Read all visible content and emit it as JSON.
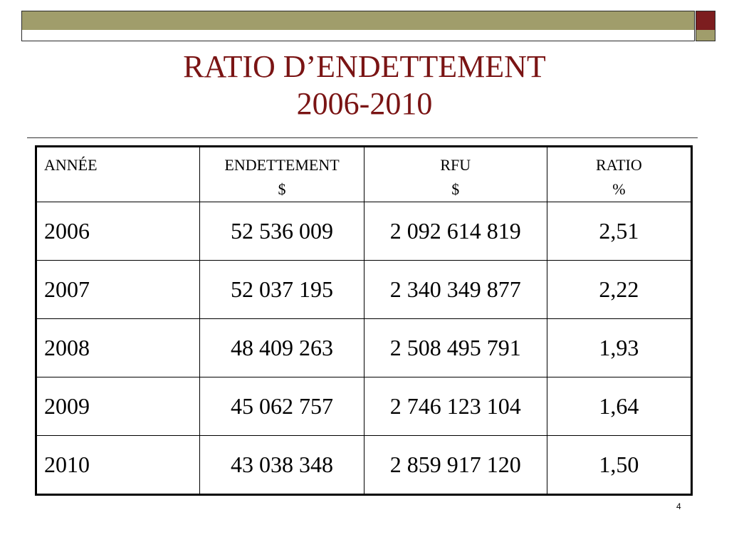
{
  "slide": {
    "title_line1": "RATIO D’ENDETTEMENT",
    "title_line2": "2006-2010",
    "page_number": "4",
    "colors": {
      "title": "#7a1414",
      "bar_olive": "#a09d6b",
      "bar_red": "#7c1d1f"
    }
  },
  "table": {
    "headers": [
      {
        "line1": "ANNÉE",
        "line2": ""
      },
      {
        "line1": "ENDETTEMENT",
        "line2": "$"
      },
      {
        "line1": "RFU",
        "line2": "$"
      },
      {
        "line1": "RATIO",
        "line2": "%"
      }
    ],
    "rows": [
      {
        "year": "2006",
        "endettement": "52 536 009",
        "rfu": "2 092 614 819",
        "ratio": "2,51"
      },
      {
        "year": "2007",
        "endettement": "52 037 195",
        "rfu": "2 340 349 877",
        "ratio": "2,22"
      },
      {
        "year": "2008",
        "endettement": "48 409 263",
        "rfu": "2 508 495 791",
        "ratio": "1,93"
      },
      {
        "year": "2009",
        "endettement": "45 062 757",
        "rfu": "2 746 123 104",
        "ratio": "1,64"
      },
      {
        "year": "2010",
        "endettement": "43 038 348",
        "rfu": "2 859 917 120",
        "ratio": "1,50"
      }
    ]
  }
}
